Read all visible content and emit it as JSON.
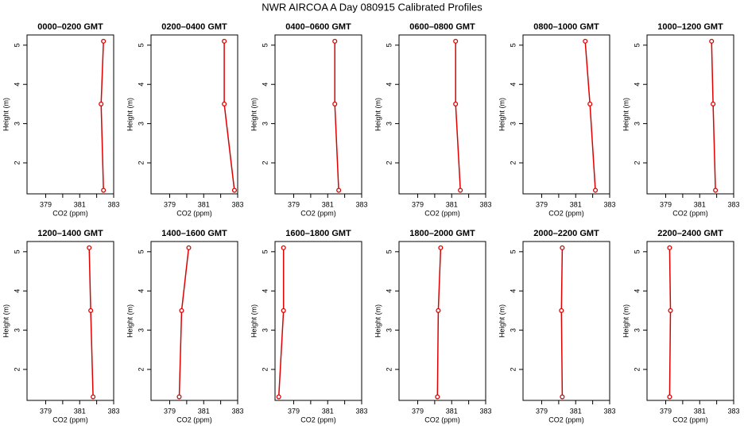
{
  "title": "NWR AIRCOA A  Day 080915  Calibrated Profiles",
  "chart_data": [
    {
      "type": "line",
      "title": "0000–0200 GMT",
      "xlabel": "CO2 (ppm)",
      "ylabel": "Height (m)",
      "x": [
        382.4,
        382.26,
        382.4
      ],
      "values": [
        5.1,
        3.5,
        1.3
      ],
      "color": "#e00000",
      "xlim": [
        377.9,
        383
      ],
      "xticks": [
        379,
        381,
        383
      ],
      "xminor_ticks": [
        380,
        382
      ],
      "ylim": [
        1.21,
        5.26
      ],
      "yticks": [
        2,
        3,
        4,
        5
      ]
    },
    {
      "type": "line",
      "title": "0200–0400 GMT",
      "xlabel": "CO2 (ppm)",
      "ylabel": "Height (m)",
      "x": [
        382.21,
        382.21,
        382.81
      ],
      "values": [
        5.1,
        3.5,
        1.3
      ],
      "color": "#e00000",
      "xlim": [
        377.9,
        383
      ],
      "xticks": [
        379,
        381,
        383
      ],
      "xminor_ticks": [
        380,
        382
      ],
      "ylim": [
        1.21,
        5.26
      ],
      "yticks": [
        2,
        3,
        4,
        5
      ]
    },
    {
      "type": "line",
      "title": "0400–0600 GMT",
      "xlabel": "CO2 (ppm)",
      "ylabel": "Height (m)",
      "x": [
        381.42,
        381.42,
        381.65
      ],
      "values": [
        5.1,
        3.5,
        1.3
      ],
      "color": "#e00000",
      "xlim": [
        377.9,
        383
      ],
      "xticks": [
        379,
        381,
        383
      ],
      "xminor_ticks": [
        380,
        382
      ],
      "ylim": [
        1.21,
        5.26
      ],
      "yticks": [
        2,
        3,
        4,
        5
      ]
    },
    {
      "type": "line",
      "title": "0600–0800 GMT",
      "xlabel": "CO2 (ppm)",
      "ylabel": "Height (m)",
      "x": [
        381.23,
        381.23,
        381.51
      ],
      "values": [
        5.1,
        3.5,
        1.3
      ],
      "color": "#e00000",
      "xlim": [
        377.9,
        383
      ],
      "xticks": [
        379,
        381,
        383
      ],
      "xminor_ticks": [
        380,
        382
      ],
      "ylim": [
        1.21,
        5.26
      ],
      "yticks": [
        2,
        3,
        4,
        5
      ]
    },
    {
      "type": "line",
      "title": "0800–1000 GMT",
      "xlabel": "CO2 (ppm)",
      "ylabel": "Height (m)",
      "x": [
        381.56,
        381.84,
        382.16
      ],
      "values": [
        5.1,
        3.5,
        1.3
      ],
      "color": "#e00000",
      "xlim": [
        377.9,
        383
      ],
      "xticks": [
        379,
        381,
        383
      ],
      "xminor_ticks": [
        380,
        382
      ],
      "ylim": [
        1.21,
        5.26
      ],
      "yticks": [
        2,
        3,
        4,
        5
      ]
    },
    {
      "type": "line",
      "title": "1000–1200 GMT",
      "xlabel": "CO2 (ppm)",
      "ylabel": "Height (m)",
      "x": [
        381.7,
        381.79,
        381.93
      ],
      "values": [
        5.1,
        3.5,
        1.3
      ],
      "color": "#e00000",
      "xlim": [
        377.9,
        383
      ],
      "xticks": [
        379,
        381,
        383
      ],
      "xminor_ticks": [
        380,
        382
      ],
      "ylim": [
        1.21,
        5.26
      ],
      "yticks": [
        2,
        3,
        4,
        5
      ]
    },
    {
      "type": "line",
      "title": "1200–1400 GMT",
      "xlabel": "CO2 (ppm)",
      "ylabel": "Height (m)",
      "x": [
        381.56,
        381.65,
        381.79
      ],
      "values": [
        5.1,
        3.5,
        1.3
      ],
      "color": "#e00000",
      "xlim": [
        377.9,
        383
      ],
      "xticks": [
        379,
        381,
        383
      ],
      "xminor_ticks": [
        380,
        382
      ],
      "ylim": [
        1.21,
        5.26
      ],
      "yticks": [
        2,
        3,
        4,
        5
      ]
    },
    {
      "type": "line",
      "title": "1400–1600 GMT",
      "xlabel": "CO2 (ppm)",
      "ylabel": "Height (m)",
      "x": [
        380.12,
        379.7,
        379.56
      ],
      "values": [
        5.1,
        3.5,
        1.3
      ],
      "color": "#e00000",
      "xlim": [
        377.9,
        383
      ],
      "xticks": [
        379,
        381,
        383
      ],
      "xminor_ticks": [
        380,
        382
      ],
      "ylim": [
        1.21,
        5.26
      ],
      "yticks": [
        2,
        3,
        4,
        5
      ]
    },
    {
      "type": "line",
      "title": "1600–1800 GMT",
      "xlabel": "CO2 (ppm)",
      "ylabel": "Height (m)",
      "x": [
        378.4,
        378.4,
        378.12
      ],
      "values": [
        5.1,
        3.5,
        1.3
      ],
      "color": "#e00000",
      "xlim": [
        377.9,
        383
      ],
      "xticks": [
        379,
        381,
        383
      ],
      "xminor_ticks": [
        380,
        382
      ],
      "ylim": [
        1.21,
        5.26
      ],
      "yticks": [
        2,
        3,
        4,
        5
      ]
    },
    {
      "type": "line",
      "title": "1800–2000 GMT",
      "xlabel": "CO2 (ppm)",
      "ylabel": "Height (m)",
      "x": [
        380.35,
        380.21,
        380.16
      ],
      "values": [
        5.1,
        3.5,
        1.3
      ],
      "color": "#e00000",
      "xlim": [
        377.9,
        383
      ],
      "xticks": [
        379,
        381,
        383
      ],
      "xminor_ticks": [
        380,
        382
      ],
      "ylim": [
        1.21,
        5.26
      ],
      "yticks": [
        2,
        3,
        4,
        5
      ]
    },
    {
      "type": "line",
      "title": "2000–2200 GMT",
      "xlabel": "CO2 (ppm)",
      "ylabel": "Height (m)",
      "x": [
        380.21,
        380.16,
        380.21
      ],
      "values": [
        5.1,
        3.5,
        1.3
      ],
      "color": "#e00000",
      "xlim": [
        377.9,
        383
      ],
      "xticks": [
        379,
        381,
        383
      ],
      "xminor_ticks": [
        380,
        382
      ],
      "ylim": [
        1.21,
        5.26
      ],
      "yticks": [
        2,
        3,
        4,
        5
      ]
    },
    {
      "type": "line",
      "title": "2200–2400 GMT",
      "xlabel": "CO2 (ppm)",
      "ylabel": "Height (m)",
      "x": [
        379.23,
        379.28,
        379.23
      ],
      "values": [
        5.1,
        3.5,
        1.3
      ],
      "color": "#e00000",
      "xlim": [
        377.9,
        383
      ],
      "xticks": [
        379,
        381,
        383
      ],
      "xminor_ticks": [
        380,
        382
      ],
      "ylim": [
        1.21,
        5.26
      ],
      "yticks": [
        2,
        3,
        4,
        5
      ]
    }
  ]
}
